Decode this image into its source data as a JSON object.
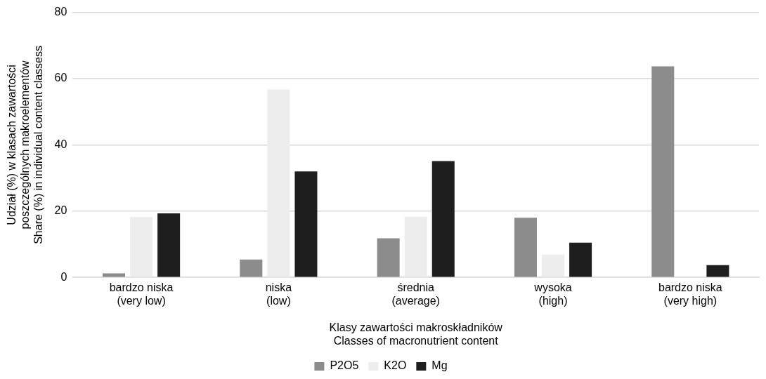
{
  "chart_data": {
    "type": "bar",
    "xlabel": "Klasy zawartości makroskładników\nClasses of macronutrient content",
    "ylabel": "Udział (%) w klasach zawartości\nposzczególnych makroelementów\nShare (%) in individual content classess",
    "categories": [
      "bardzo niska\n(very low)",
      "niska\n(low)",
      "średnia\n(average)",
      "wysoka\n(high)",
      "bardzo niska\n(very high)"
    ],
    "series": [
      {
        "name": "P2O5",
        "color": "#8c8c8c",
        "values": [
          1.2,
          5.4,
          11.8,
          18.0,
          63.7
        ]
      },
      {
        "name": "K2O",
        "color": "#ededed",
        "values": [
          18.2,
          56.7,
          18.3,
          6.9,
          null
        ]
      },
      {
        "name": "Mg",
        "color": "#1e1e1e",
        "values": [
          19.3,
          32.0,
          35.1,
          10.5,
          3.7
        ]
      }
    ],
    "ylim": [
      0,
      80
    ],
    "yticks": [
      0,
      20,
      40,
      60,
      80
    ],
    "grid": "y",
    "legend": "bottom"
  }
}
